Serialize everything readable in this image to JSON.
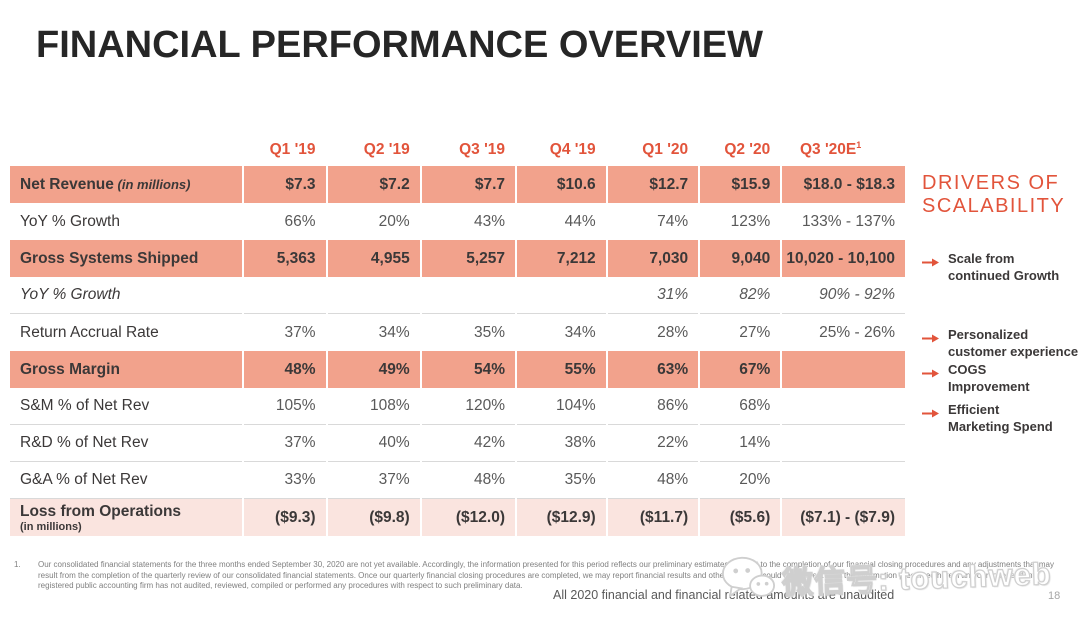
{
  "slide": {
    "title": "FINANCIAL PERFORMANCE OVERVIEW",
    "page_number": "18",
    "unaudited_note": "All 2020 financial and financial related amounts are unaudited"
  },
  "table": {
    "columns": [
      {
        "label": "Q1 '19"
      },
      {
        "label": "Q2 '19"
      },
      {
        "label": "Q3 '19"
      },
      {
        "label": "Q4 '19"
      },
      {
        "label": "Q1 '20"
      },
      {
        "label": "Q2 '20"
      },
      {
        "label": "Q3 '20E",
        "sup": "1"
      }
    ],
    "rows": [
      {
        "label": "Net Revenue",
        "note_inline": "(in millions)",
        "style": "highlight",
        "values": [
          "$7.3",
          "$7.2",
          "$7.7",
          "$10.6",
          "$12.7",
          "$15.9",
          "$18.0 - $18.3"
        ]
      },
      {
        "label": "YoY % Growth",
        "style": "plain",
        "values": [
          "66%",
          "20%",
          "43%",
          "44%",
          "74%",
          "123%",
          "133% - 137%"
        ]
      },
      {
        "label": "Gross Systems Shipped",
        "style": "highlight",
        "values": [
          "5,363",
          "4,955",
          "5,257",
          "7,212",
          "7,030",
          "9,040",
          "10,020 - 10,100"
        ]
      },
      {
        "label": "YoY % Growth",
        "style": "plain italic ruled",
        "values": [
          "",
          "",
          "",
          "",
          "31%",
          "82%",
          "90% - 92%"
        ]
      },
      {
        "label": "Return Accrual Rate",
        "style": "plain",
        "values": [
          "37%",
          "34%",
          "35%",
          "34%",
          "28%",
          "27%",
          "25% - 26%"
        ]
      },
      {
        "label": "Gross Margin",
        "style": "highlight",
        "values": [
          "48%",
          "49%",
          "54%",
          "55%",
          "63%",
          "67%",
          ""
        ]
      },
      {
        "label": "S&M % of Net Rev",
        "style": "plain ruled",
        "values": [
          "105%",
          "108%",
          "120%",
          "104%",
          "86%",
          "68%",
          ""
        ]
      },
      {
        "label": "R&D % of Net Rev",
        "style": "plain ruled",
        "values": [
          "37%",
          "40%",
          "42%",
          "38%",
          "22%",
          "14%",
          ""
        ]
      },
      {
        "label": "G&A % of Net Rev",
        "style": "plain ruled",
        "values": [
          "33%",
          "37%",
          "48%",
          "35%",
          "48%",
          "20%",
          ""
        ]
      },
      {
        "label": "Loss from Operations",
        "note_block": "(in millions)",
        "style": "subtotal",
        "values": [
          "($9.3)",
          "($9.8)",
          "($12.0)",
          "($12.9)",
          "($11.7)",
          "($5.6)",
          "($7.1) - ($7.9)"
        ]
      }
    ]
  },
  "drivers": {
    "heading_line1": "DRIVERS OF",
    "heading_line2": "SCALABILITY",
    "items": [
      {
        "lines": [
          "Scale from",
          "continued Growth"
        ]
      },
      {
        "lines": [
          "Personalized",
          "customer experience"
        ]
      },
      {
        "lines": [
          "COGS",
          "Improvement"
        ]
      },
      {
        "lines": [
          "Efficient",
          "Marketing Spend"
        ]
      }
    ]
  },
  "footnote": {
    "marker": "1.",
    "text": "Our consolidated financial statements for the three months ended September 30, 2020 are not yet available. Accordingly, the information presented for this period reflects our preliminary estimates, subject to the completion of our financial closing procedures and any adjustments that may result from the completion of the quarterly review of our consolidated financial statements. Once our quarterly financial closing procedures are completed, we may report financial results and other data that could be different from the information presented herein and our independent registered public accounting firm has not audited, reviewed, compiled or performed any procedures with respect to such preliminary data."
  },
  "watermark": {
    "text": "微信号: touchweb",
    "icon": "wechat-icon"
  },
  "icons": {
    "driver_bullet": "arrow-right-icon",
    "watermark": "wechat-icon"
  },
  "colors": {
    "accent": "#E2543B",
    "row_highlight": "#F2A28C",
    "row_subtotal": "#FAE4DF",
    "text_dark": "#3B3838",
    "text_gray": "#595959",
    "title": "#262626"
  }
}
